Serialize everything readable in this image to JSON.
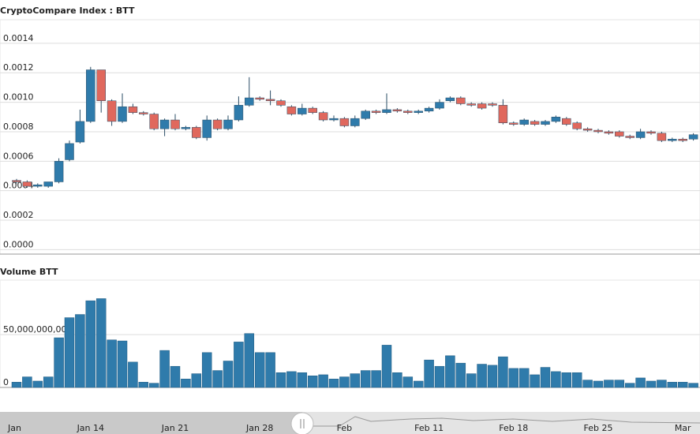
{
  "chart_data": [
    {
      "type": "candlestick",
      "title": "CryptoCompare Index : BTT",
      "open": [
        0.00047,
        0.00046,
        0.00043,
        0.00043,
        0.00046,
        0.00061,
        0.00073,
        0.00087,
        0.00122,
        0.00101,
        0.00087,
        0.00097,
        0.00093,
        0.00092,
        0.00082,
        0.00088,
        0.00082,
        0.00083,
        0.00076,
        0.00088,
        0.00082,
        0.00088,
        0.00098,
        0.00103,
        0.00102,
        0.00101,
        0.00097,
        0.00092,
        0.00096,
        0.00093,
        0.00088,
        0.00089,
        0.00084,
        0.00089,
        0.00094,
        0.00093,
        0.00095,
        0.00094,
        0.00093,
        0.00094,
        0.00096,
        0.00101,
        0.00103,
        0.00099,
        0.00099,
        0.00099,
        0.00098,
        0.00086,
        0.00085,
        0.00087,
        0.00085,
        0.00087,
        0.00089,
        0.00086,
        0.00082,
        0.00081,
        0.0008,
        0.0008,
        0.00077,
        0.00076,
        0.0008,
        0.00079,
        0.00074,
        0.00075,
        0.00075
      ],
      "high": [
        0.00048,
        0.00047,
        0.00045,
        0.00046,
        0.00062,
        0.00074,
        0.00095,
        0.00124,
        0.00122,
        0.00102,
        0.00106,
        0.00099,
        0.00094,
        0.00093,
        0.00089,
        0.00092,
        0.00084,
        0.00084,
        0.00091,
        0.00089,
        0.00091,
        0.00104,
        0.00117,
        0.00104,
        0.00108,
        0.00102,
        0.00098,
        0.00099,
        0.00097,
        0.00094,
        0.00091,
        0.0009,
        0.00091,
        0.00095,
        0.00095,
        0.00106,
        0.00096,
        0.00095,
        0.00095,
        0.00097,
        0.00102,
        0.00104,
        0.00104,
        0.001,
        0.001,
        0.001,
        0.00102,
        0.00087,
        0.00089,
        0.00088,
        0.00088,
        0.00091,
        0.0009,
        0.00087,
        0.00083,
        0.00082,
        0.00081,
        0.00081,
        0.00078,
        0.00082,
        0.00081,
        0.0008,
        0.00076,
        0.00076,
        0.00079
      ],
      "low": [
        0.00045,
        0.00042,
        0.00042,
        0.00042,
        0.00045,
        0.0006,
        0.00072,
        0.00086,
        0.00093,
        0.00084,
        0.00086,
        0.00092,
        0.00091,
        0.00081,
        0.00077,
        0.00081,
        0.00081,
        0.00075,
        0.00074,
        0.00081,
        0.00081,
        0.00087,
        0.00097,
        0.00101,
        0.00098,
        0.00097,
        0.00091,
        0.00091,
        0.00092,
        0.00087,
        0.00087,
        0.00083,
        0.00083,
        0.00088,
        0.00092,
        0.00092,
        0.00093,
        0.00092,
        0.00092,
        0.00093,
        0.00095,
        0.001,
        0.00098,
        0.00097,
        0.00095,
        0.00097,
        0.00085,
        0.00084,
        0.00084,
        0.00084,
        0.00084,
        0.00086,
        0.00084,
        0.00081,
        0.0008,
        0.00079,
        0.00078,
        0.00076,
        0.00075,
        0.00075,
        0.00078,
        0.00073,
        0.00073,
        0.00073,
        0.00074
      ],
      "close": [
        0.00046,
        0.00043,
        0.00044,
        0.00046,
        0.0006,
        0.00072,
        0.00087,
        0.00122,
        0.00101,
        0.00087,
        0.00097,
        0.00093,
        0.00092,
        0.00082,
        0.00088,
        0.00082,
        0.00083,
        0.00076,
        0.00088,
        0.00082,
        0.00088,
        0.00098,
        0.00103,
        0.00102,
        0.00101,
        0.00098,
        0.00092,
        0.00096,
        0.00093,
        0.00088,
        0.00089,
        0.00084,
        0.00089,
        0.00094,
        0.00093,
        0.00095,
        0.00094,
        0.00093,
        0.00094,
        0.00096,
        0.001,
        0.00103,
        0.00099,
        0.00098,
        0.00096,
        0.00098,
        0.00086,
        0.00085,
        0.00088,
        0.00085,
        0.00087,
        0.0009,
        0.00085,
        0.00082,
        0.00081,
        0.0008,
        0.00079,
        0.00077,
        0.00076,
        0.0008,
        0.00079,
        0.00074,
        0.00075,
        0.00074,
        0.00078
      ],
      "up_color": "#2f7bab",
      "down_color": "#e0685d",
      "ylim": [
        -3e-05,
        0.00156
      ],
      "yticks": [
        {
          "value": 0,
          "label": "0.0000"
        },
        0.0002,
        0.0004,
        0.0006,
        0.0008,
        {
          "value": 0.001,
          "label": "0.0010"
        },
        0.0012,
        0.0014
      ],
      "grid": true
    },
    {
      "type": "bar",
      "title": "Volume BTT",
      "categories": [
        "Jan",
        null,
        null,
        null,
        null,
        null,
        null,
        "Jan 14",
        null,
        null,
        null,
        null,
        null,
        null,
        null,
        "Jan 21",
        null,
        null,
        null,
        null,
        null,
        null,
        null,
        "Jan 28",
        null,
        null,
        null,
        null,
        null,
        null,
        null,
        "Feb",
        null,
        null,
        null,
        null,
        null,
        null,
        null,
        "Feb 11",
        null,
        null,
        null,
        null,
        null,
        null,
        null,
        "Feb 18",
        null,
        null,
        null,
        null,
        null,
        null,
        null,
        "Feb 25",
        null,
        null,
        null,
        null,
        null,
        null,
        null,
        "Mar",
        null
      ],
      "values": [
        5000000000,
        10000000000,
        6000000000,
        10000000000,
        47000000000,
        66000000000,
        69000000000,
        82000000000,
        84000000000,
        45000000000,
        44000000000,
        24000000000,
        5000000000,
        4000000000,
        35000000000,
        20000000000,
        8000000000,
        13000000000,
        33000000000,
        16000000000,
        25000000000,
        43000000000,
        51000000000,
        33000000000,
        33000000000,
        14000000000,
        15000000000,
        14000000000,
        11000000000,
        12000000000,
        8000000000,
        10000000000,
        13000000000,
        16000000000,
        16000000000,
        40000000000,
        14000000000,
        10000000000,
        6000000000,
        26000000000,
        20000000000,
        30000000000,
        23000000000,
        13000000000,
        22000000000,
        21000000000,
        29000000000,
        18000000000,
        18000000000,
        12000000000,
        19000000000,
        15000000000,
        14000000000,
        14000000000,
        7000000000,
        6000000000,
        7000000000,
        7000000000,
        4000000000,
        9000000000,
        6000000000,
        7000000000,
        5000000000,
        5000000000,
        4000000000
      ],
      "color": "#2f7bab",
      "ylim": [
        0,
        101500000000
      ],
      "yticks": [
        0,
        {
          "value": 50000000000,
          "label": "50,000,000,000"
        }
      ],
      "grid": true
    }
  ]
}
